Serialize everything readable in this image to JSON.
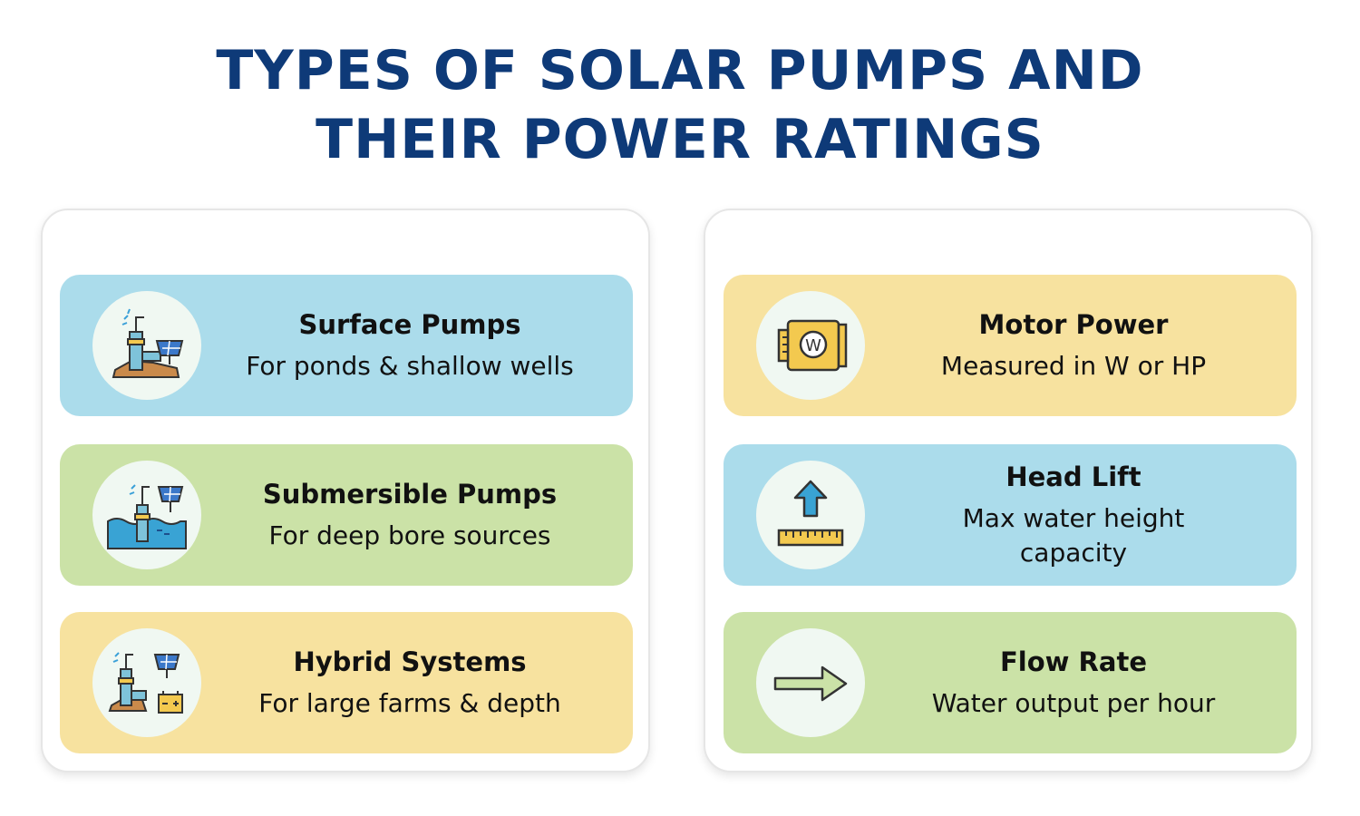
{
  "title": {
    "line1": "TYPES OF SOLAR PUMPS AND",
    "line2": "THEIR POWER RATINGS"
  },
  "colors": {
    "title": "#0e3a78",
    "blue_card": "#abdceb",
    "green_card": "#cbe2a7",
    "yellow_card": "#f7e29f"
  },
  "pump_types": [
    {
      "title": "Surface Pumps",
      "description": "For ponds & shallow wells",
      "icon": "surface-pump-icon"
    },
    {
      "title": "Submersible Pumps",
      "description": "For deep bore sources",
      "icon": "submersible-pump-icon"
    },
    {
      "title": "Hybrid Systems",
      "description": "For large farms & depth",
      "icon": "hybrid-system-icon"
    }
  ],
  "power_ratings": [
    {
      "title": "Motor Power",
      "description": "Measured in W or HP",
      "icon": "motor-icon"
    },
    {
      "title": "Head Lift",
      "description": "Max water height capacity",
      "icon": "head-lift-icon"
    },
    {
      "title": "Flow Rate",
      "description": "Water output per hour",
      "icon": "flow-arrow-icon"
    }
  ]
}
